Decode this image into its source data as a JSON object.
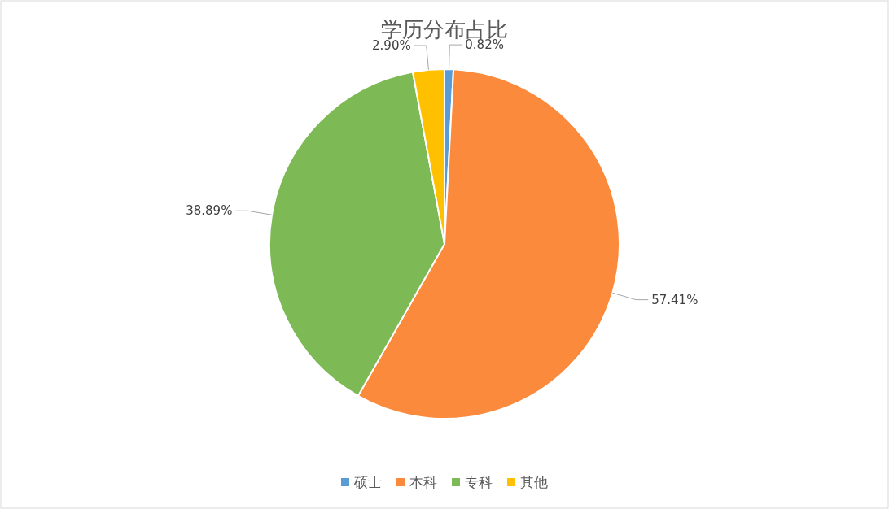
{
  "chart_data": {
    "type": "pie",
    "title": "学历分布占比",
    "categories": [
      "硕士",
      "本科",
      "专科",
      "其他"
    ],
    "values": [
      0.82,
      57.41,
      38.89,
      2.9
    ],
    "value_labels": [
      "0.82%",
      "57.41%",
      "38.89%",
      "2.90%"
    ],
    "colors": [
      "#5b9bd5",
      "#fb8a3c",
      "#7db954",
      "#ffc000"
    ],
    "legend": "bottom"
  }
}
